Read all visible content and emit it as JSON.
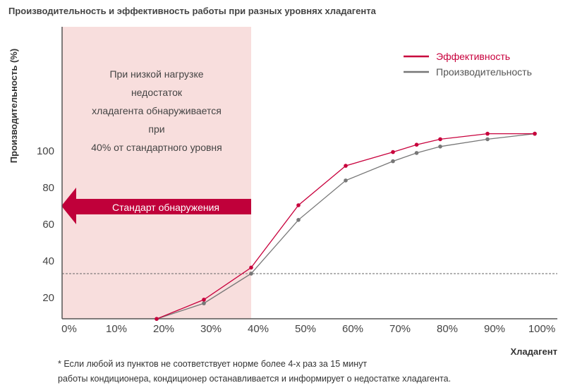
{
  "chart_data": {
    "type": "line",
    "title": "Производительность и эффективность работы при разных уровнях хладагента",
    "xlabel": "Хладагент",
    "ylabel": "Производительность (%)",
    "x_ticks": [
      "0%",
      "10%",
      "20%",
      "30%",
      "40%",
      "50%",
      "60%",
      "70%",
      "80%",
      "90%",
      "100%"
    ],
    "y_ticks": [
      20,
      40,
      60,
      80,
      100
    ],
    "x": [
      20,
      30,
      40,
      50,
      60,
      70,
      75,
      80,
      90,
      100
    ],
    "series": [
      {
        "name": "Эффективность",
        "color": "#c8003c",
        "values": [
          8,
          18.5,
          36,
          70,
          91.5,
          99,
          103,
          106,
          109,
          109
        ]
      },
      {
        "name": "Производительность",
        "color": "#777777",
        "values": [
          8,
          16.5,
          32.7,
          62,
          83.5,
          94,
          98.5,
          102,
          106,
          109
        ]
      }
    ],
    "reference_line": 32.7,
    "shaded_region": [
      0,
      40
    ],
    "shaded_color": "#f8dedd",
    "region_text": [
      "При низкой нагрузке",
      "недостаток",
      "хладагента обнаруживается",
      "при",
      "40% от стандартного уровня"
    ],
    "arrow_label": "Стандарт обнаружения",
    "arrow_color": "#c0003a",
    "legend_position": "top-right",
    "footnote": [
      "* Если любой из пунктов не соответствует норме более 4-х раз за 15 минут",
      "работы кондиционера, кондиционер останавливается и информирует о недостатке хладагента."
    ]
  }
}
